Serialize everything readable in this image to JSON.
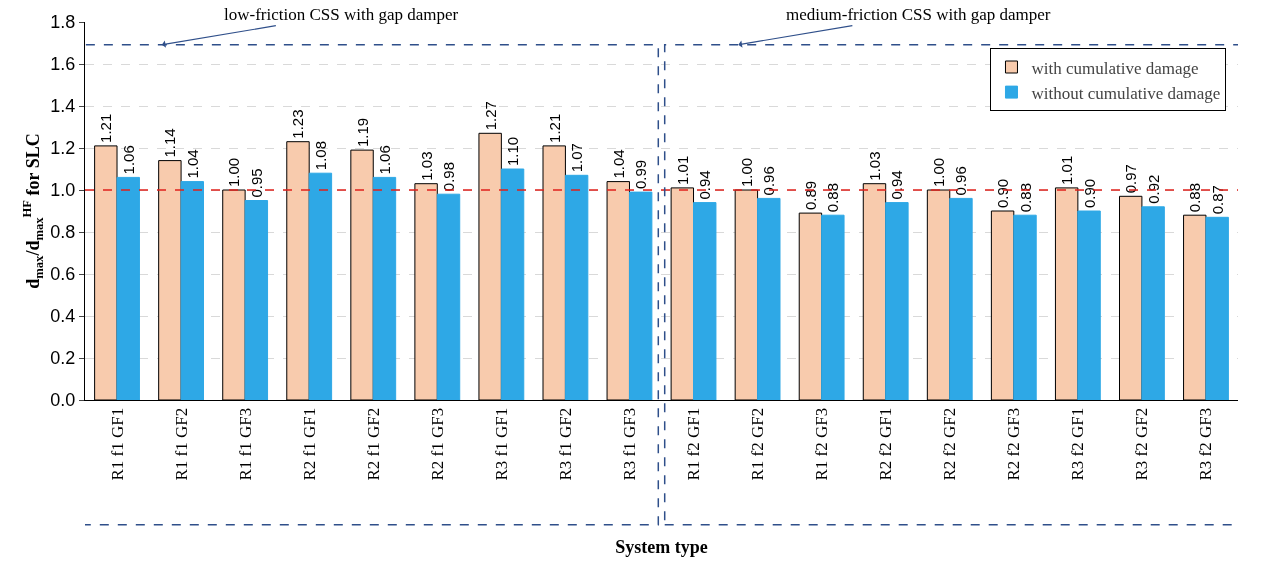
{
  "chart_data": {
    "type": "bar",
    "xlabel": "System type",
    "ylabel": "d$_{max}$/d$_{max}$$^{HF}$ for SLC",
    "categories": [
      "R1 f1 GF1",
      "R1 f1 GF2",
      "R1 f1 GF3",
      "R2 f1 GF1",
      "R2 f1 GF2",
      "R2 f1 GF3",
      "R3 f1 GF1",
      "R3 f1 GF2",
      "R3 f1 GF3",
      "R1 f2 GF1",
      "R1 f2 GF2",
      "R1 f2 GF3",
      "R2 f2 GF1",
      "R2 f2 GF2",
      "R2 f2 GF3",
      "R3 f2 GF1",
      "R3 f2 GF2",
      "R3 f2 GF3"
    ],
    "series": [
      {
        "name": "with cumulative damage",
        "color": "#f8cbad",
        "values": [
          1.21,
          1.14,
          1.0,
          1.23,
          1.19,
          1.03,
          1.27,
          1.21,
          1.04,
          1.01,
          1.0,
          0.89,
          1.03,
          1.0,
          0.9,
          1.01,
          0.97,
          0.88
        ],
        "value_labels": [
          "1.21",
          "1.14",
          "1.00",
          "1.23",
          "1.19",
          "1.03",
          "1.27",
          "1.21",
          "1.04",
          "1.01",
          "1.00",
          "0.89",
          "1.03",
          "1.00",
          "0.90",
          "1.01",
          "0.97",
          "0.88"
        ]
      },
      {
        "name": "without cumulative damage",
        "color": "#2ea8e6",
        "values": [
          1.06,
          1.04,
          0.95,
          1.08,
          1.06,
          0.98,
          1.1,
          1.07,
          0.99,
          0.94,
          0.96,
          0.88,
          0.94,
          0.96,
          0.88,
          0.9,
          0.92,
          0.87
        ],
        "value_labels": [
          "1.06",
          "1.04",
          "0.95",
          "1.08",
          "1.06",
          "0.98",
          "1.10",
          "1.07",
          "0.99",
          "0.94",
          "0.96",
          "0.88",
          "0.94",
          "0.96",
          "0.88",
          "0.90",
          "0.92",
          "0.87"
        ]
      }
    ],
    "ylim": [
      0,
      1.8
    ],
    "yticks": [
      {
        "value": 0,
        "label": "0.0"
      },
      {
        "value": 0.2,
        "label": "0.2"
      },
      {
        "value": 0.4,
        "label": "0.4"
      },
      {
        "value": 0.6,
        "label": "0.6"
      },
      {
        "value": 0.8,
        "label": "0.8"
      },
      {
        "value": 1,
        "label": "1.0"
      },
      {
        "value": 1.2,
        "label": "1.2"
      },
      {
        "value": 1.4,
        "label": "1.4"
      },
      {
        "value": 1.6,
        "label": "1.6"
      },
      {
        "value": 1.8,
        "label": "1.8"
      }
    ],
    "grid": "y",
    "legend": "top right",
    "ref_lines": [
      {
        "axis": "y",
        "value": 1,
        "color": "#e0201b",
        "line_style": "dashed"
      }
    ],
    "annotations": [
      "low-friction CSS with gap damper",
      "medium-friction CSS with gap damper"
    ]
  }
}
